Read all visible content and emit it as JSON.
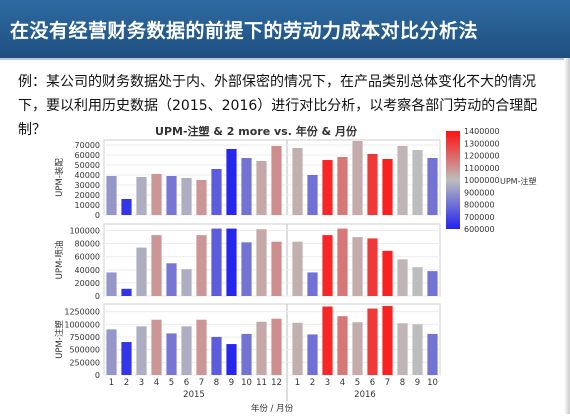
{
  "header": {
    "title": "在没有经营财务数据的前提下的劳动力成本对比分析法"
  },
  "intro": {
    "line1": "例：某公司的财务数据处于内、外部保密的情况下，在产品类别总体变化不大的情况",
    "line2": "下，要以利用历史数据（2015、2016）进行对比分析，以考察各部门劳动的合理配",
    "line3": "制？"
  },
  "chart_data": {
    "type": "bar",
    "title": "UPM-注塑 & 2 more vs. 年份 & 月份",
    "xlabel": "年份 / 月份",
    "year_labels": [
      "2015",
      "2016"
    ],
    "categories": [
      {
        "year": "2015",
        "month": "1"
      },
      {
        "year": "2015",
        "month": "2"
      },
      {
        "year": "2015",
        "month": "3"
      },
      {
        "year": "2015",
        "month": "4"
      },
      {
        "year": "2015",
        "month": "5"
      },
      {
        "year": "2015",
        "month": "6"
      },
      {
        "year": "2015",
        "month": "7"
      },
      {
        "year": "2015",
        "month": "8"
      },
      {
        "year": "2015",
        "month": "9"
      },
      {
        "year": "2015",
        "month": "10"
      },
      {
        "year": "2015",
        "month": "11"
      },
      {
        "year": "2015",
        "month": "12"
      },
      {
        "year": "2016",
        "month": "1"
      },
      {
        "year": "2016",
        "month": "2"
      },
      {
        "year": "2016",
        "month": "3"
      },
      {
        "year": "2016",
        "month": "4"
      },
      {
        "year": "2016",
        "month": "5"
      },
      {
        "year": "2016",
        "month": "6"
      },
      {
        "year": "2016",
        "month": "7"
      },
      {
        "year": "2016",
        "month": "8"
      },
      {
        "year": "2016",
        "month": "9"
      },
      {
        "year": "2016",
        "month": "10"
      }
    ],
    "color_metric": "UPM-注塑",
    "color_values": [
      900000,
      650000,
      960000,
      1090000,
      820000,
      960000,
      1090000,
      750000,
      610000,
      810000,
      1050000,
      1110000,
      1030000,
      800000,
      1350000,
      1160000,
      1040000,
      1310000,
      1360000,
      1020000,
      1000000,
      810000
    ],
    "colorbar": {
      "label": "UPM-注塑",
      "min": 600000,
      "max": 1400000,
      "ticks": [
        "1400000",
        "1300000",
        "1200000",
        "1100000",
        "1000000",
        "900000",
        "800000",
        "700000",
        "600000"
      ],
      "colors": [
        "#2222ee",
        "#bdbdbd",
        "#ff1111"
      ]
    },
    "series": [
      {
        "name": "UPM-装配",
        "ylim": [
          0,
          75000
        ],
        "yticks": [
          "70000",
          "60000",
          "50000",
          "40000",
          "30000",
          "20000",
          "10000",
          "0"
        ],
        "values": [
          39000,
          16000,
          38000,
          41000,
          39000,
          37000,
          35000,
          46000,
          66000,
          57000,
          54000,
          69000,
          67000,
          40000,
          55000,
          58000,
          74000,
          61000,
          56000,
          69000,
          65000,
          57000
        ]
      },
      {
        "name": "UPM-喷油",
        "ylim": [
          0,
          110000
        ],
        "yticks": [
          "100000",
          "80000",
          "60000",
          "40000",
          "20000",
          "0"
        ],
        "values": [
          36000,
          11000,
          74000,
          93000,
          50000,
          41000,
          93000,
          103000,
          103000,
          82000,
          102000,
          83000,
          83000,
          36000,
          93000,
          103000,
          90000,
          88000,
          69000,
          56000,
          44000,
          38000
        ]
      },
      {
        "name": "UPM-注塑",
        "ylim": [
          0,
          1400000
        ],
        "yticks": [
          "1250000",
          "1000000",
          "750000",
          "500000",
          "250000",
          "0"
        ],
        "values": [
          900000,
          650000,
          960000,
          1090000,
          820000,
          960000,
          1090000,
          750000,
          610000,
          810000,
          1050000,
          1110000,
          1030000,
          800000,
          1350000,
          1160000,
          1040000,
          1310000,
          1360000,
          1020000,
          1000000,
          810000
        ]
      }
    ]
  }
}
